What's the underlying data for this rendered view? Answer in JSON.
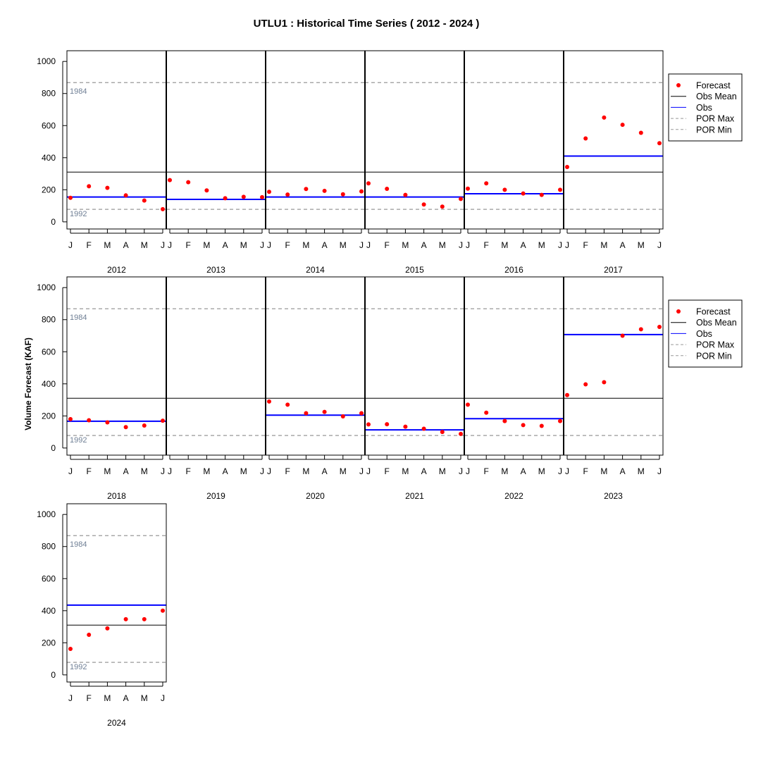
{
  "chart_data": {
    "type": "scatter",
    "title": "UTLU1 : Historical Time Series ( 2012 - 2024 )",
    "ylabel": "Volume Forecast (KAF)",
    "ylim": [
      0,
      1000
    ],
    "yticks": [
      0,
      200,
      400,
      600,
      800,
      1000
    ],
    "months": [
      "J",
      "F",
      "M",
      "A",
      "M",
      "J"
    ],
    "obs_mean": 310,
    "por_max": {
      "value": 868,
      "label": "1984"
    },
    "por_min": {
      "value": 78,
      "label": "1992"
    },
    "legend": {
      "placement": "right",
      "entries": [
        {
          "label": "Forecast",
          "style": "point",
          "color": "#ff0000"
        },
        {
          "label": "Obs Mean",
          "style": "line",
          "color": "#000000"
        },
        {
          "label": "Obs",
          "style": "line",
          "color": "#0000ff"
        },
        {
          "label": "POR Max",
          "style": "dashed",
          "color": "#999999"
        },
        {
          "label": "POR Min",
          "style": "dashed",
          "color": "#999999"
        }
      ]
    },
    "colors": {
      "forecast": "#ff0000",
      "obs": "#0000ff",
      "obs_mean": "#000000",
      "por": "#999999",
      "por_label": "#6f7f95"
    },
    "years": [
      {
        "year": "2012",
        "forecast": [
          150,
          222,
          212,
          165,
          133,
          79
        ],
        "obs": 155
      },
      {
        "year": "2013",
        "forecast": [
          260,
          247,
          196,
          147,
          156,
          154
        ],
        "obs": 140
      },
      {
        "year": "2014",
        "forecast": [
          187,
          170,
          205,
          193,
          172,
          190
        ],
        "obs": 155
      },
      {
        "year": "2015",
        "forecast": [
          240,
          206,
          168,
          108,
          95,
          143
        ],
        "obs": 155
      },
      {
        "year": "2016",
        "forecast": [
          207,
          240,
          200,
          177,
          168,
          200
        ],
        "obs": 175
      },
      {
        "year": "2017",
        "forecast": [
          342,
          520,
          650,
          605,
          555,
          490
        ],
        "obs": 410
      },
      {
        "year": "2018",
        "forecast": [
          180,
          173,
          160,
          130,
          140,
          170
        ],
        "obs": 167
      },
      {
        "year": "2019",
        "forecast": [],
        "obs": null
      },
      {
        "year": "2020",
        "forecast": [
          290,
          270,
          217,
          225,
          197,
          217
        ],
        "obs": 205
      },
      {
        "year": "2021",
        "forecast": [
          147,
          148,
          133,
          120,
          100,
          88
        ],
        "obs": 113
      },
      {
        "year": "2022",
        "forecast": [
          270,
          220,
          168,
          143,
          138,
          168
        ],
        "obs": 183
      },
      {
        "year": "2023",
        "forecast": [
          330,
          397,
          410,
          700,
          740,
          755
        ],
        "obs": 707
      },
      {
        "year": "2024",
        "forecast": [
          162,
          250,
          290,
          347,
          347,
          400
        ],
        "obs": 435
      }
    ]
  }
}
